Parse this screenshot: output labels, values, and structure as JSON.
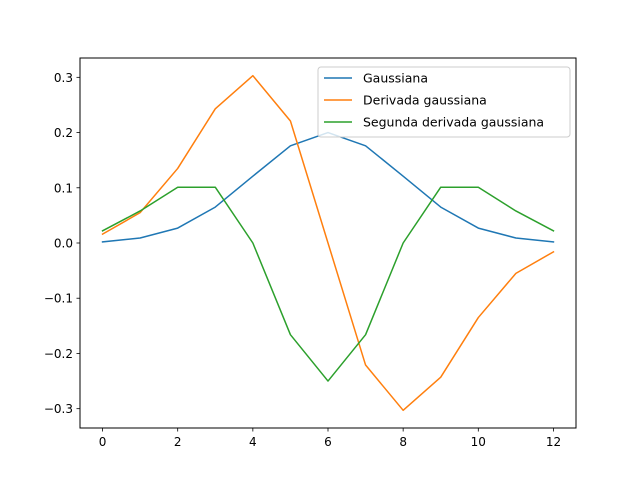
{
  "chart_data": {
    "type": "line",
    "x": [
      0,
      1,
      2,
      3,
      4,
      5,
      6,
      7,
      8,
      9,
      10,
      11,
      12
    ],
    "xlim": [
      -0.6,
      12.6
    ],
    "ylim": [
      -0.335,
      0.335
    ],
    "xticks": [
      0,
      2,
      4,
      6,
      8,
      10,
      12
    ],
    "xtick_labels": [
      "0",
      "2",
      "4",
      "6",
      "8",
      "10",
      "12"
    ],
    "yticks": [
      -0.3,
      -0.2,
      -0.1,
      0.0,
      0.1,
      0.2,
      0.3
    ],
    "ytick_labels": [
      "−0.3",
      "−0.2",
      "−0.1",
      "0.0",
      "0.1",
      "0.2",
      "0.3"
    ],
    "grid": false,
    "legend_position": "top-right",
    "series": [
      {
        "name": "Gaussiana",
        "color": "#1f77b4",
        "values": [
          0.002,
          0.009,
          0.027,
          0.065,
          0.121,
          0.176,
          0.2,
          0.176,
          0.121,
          0.065,
          0.027,
          0.009,
          0.002
        ]
      },
      {
        "name": "Derivada gaussiana",
        "color": "#ff7f0e",
        "values": [
          0.016,
          0.055,
          0.135,
          0.243,
          0.303,
          0.221,
          0.0,
          -0.221,
          -0.303,
          -0.243,
          -0.135,
          -0.055,
          -0.016
        ]
      },
      {
        "name": "Segunda derivada gaussiana",
        "color": "#2ca02c",
        "values": [
          0.022,
          0.058,
          0.101,
          0.101,
          0.0,
          -0.166,
          -0.25,
          -0.166,
          0.0,
          0.101,
          0.101,
          0.058,
          0.022
        ]
      }
    ]
  }
}
